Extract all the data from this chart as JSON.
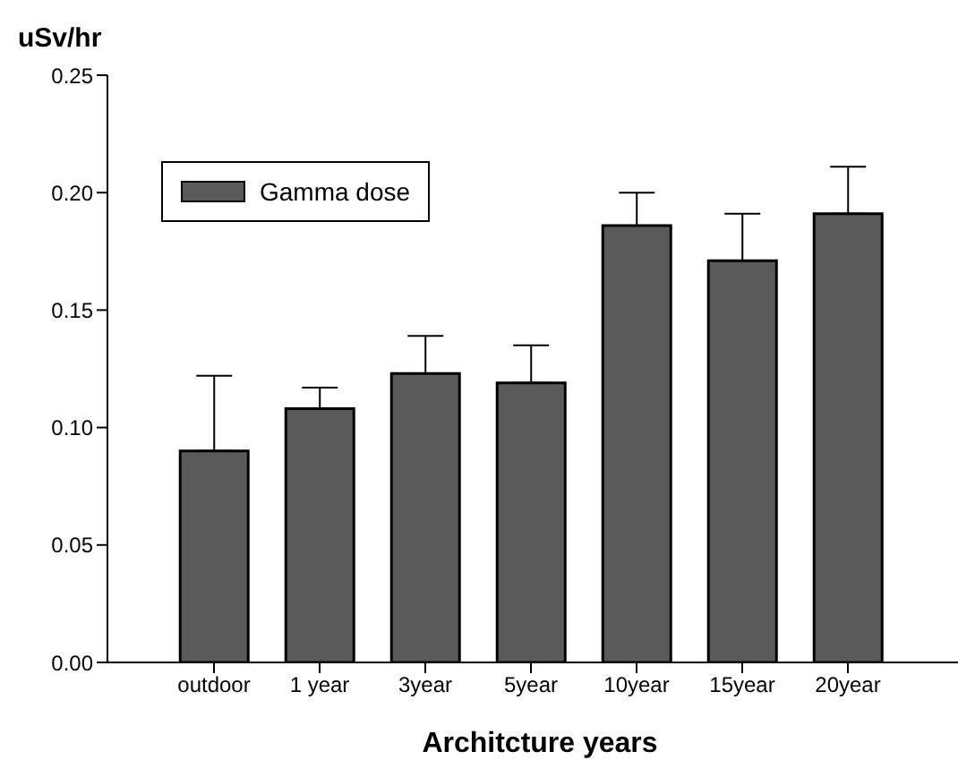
{
  "chart_data": {
    "type": "bar",
    "xlabel": "Architcture years",
    "ylabel": "uSv/hr",
    "categories": [
      "outdoor",
      "1 year",
      "3year",
      "5year",
      "10year",
      "15year",
      "20year"
    ],
    "series": [
      {
        "name": "Gamma dose",
        "color": "#5a5a5a",
        "values": [
          0.09,
          0.108,
          0.123,
          0.119,
          0.186,
          0.171,
          0.191
        ],
        "errors": [
          [
            0.09,
            0.122
          ],
          [
            0.108,
            0.117
          ],
          [
            0.123,
            0.139
          ],
          [
            0.119,
            0.135
          ],
          [
            0.186,
            0.2
          ],
          [
            0.171,
            0.191
          ],
          [
            0.191,
            0.211
          ]
        ]
      }
    ],
    "ylim": [
      0,
      0.25
    ],
    "yticks": [
      {
        "value": 0,
        "label": "0.00"
      },
      {
        "value": 0.05,
        "label": "0.05"
      },
      {
        "value": 0.1,
        "label": "0.10"
      },
      {
        "value": 0.15,
        "label": "0.15"
      },
      {
        "value": 0.2,
        "label": "0.20"
      },
      {
        "value": 0.25,
        "label": "0.25"
      }
    ],
    "grid": false,
    "legend": "top left"
  }
}
